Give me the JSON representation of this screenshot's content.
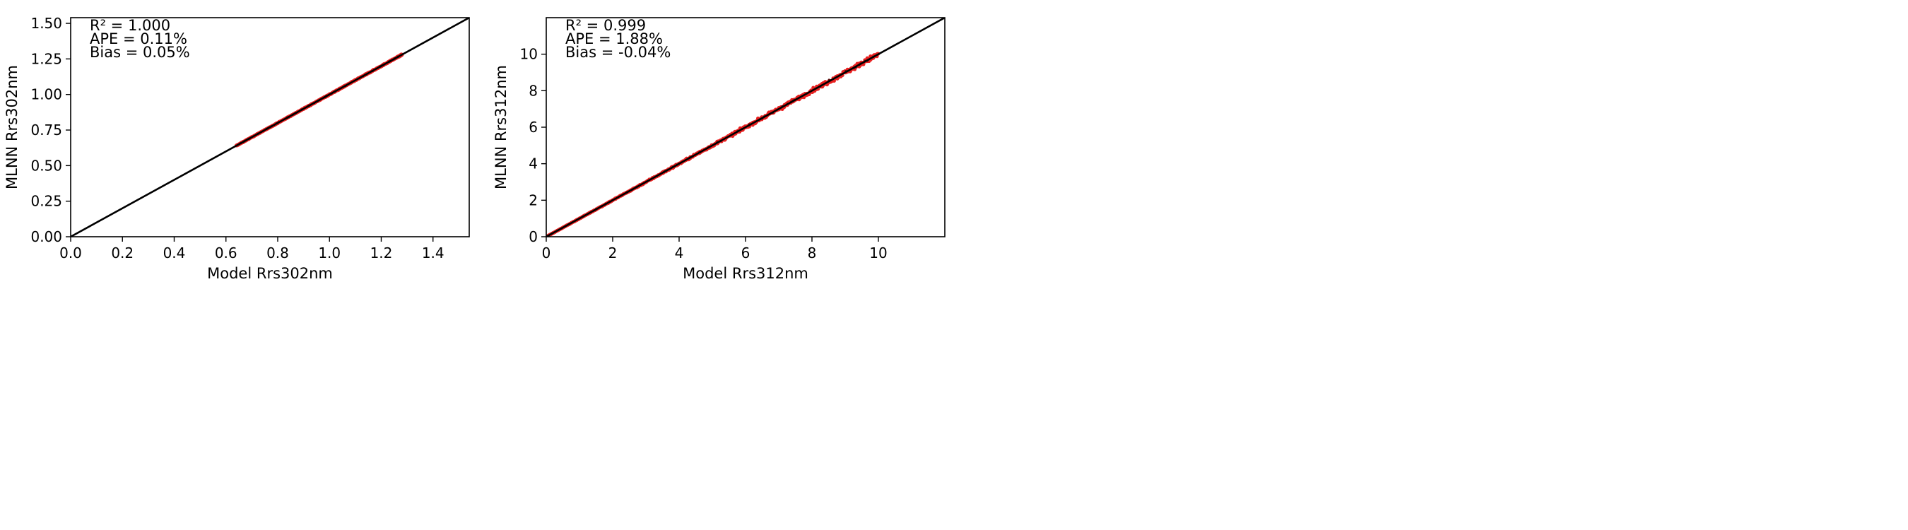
{
  "figure": {
    "background": "#ffffff"
  },
  "chart_data": [
    {
      "type": "scatter",
      "xlabel": "Model Rrs302nm",
      "ylabel": "MLNN Rrs302nm",
      "xlim": [
        0,
        1.54
      ],
      "ylim": [
        0,
        1.54
      ],
      "xticks": [
        0.0,
        0.2,
        0.4,
        0.6,
        0.8,
        1.0,
        1.2,
        1.4
      ],
      "xtick_labels": [
        "0.0",
        "0.2",
        "0.4",
        "0.6",
        "0.8",
        "1.0",
        "1.2",
        "1.4"
      ],
      "yticks": [
        0.0,
        0.25,
        0.5,
        0.75,
        1.0,
        1.25,
        1.5
      ],
      "ytick_labels": [
        "0.00",
        "0.25",
        "0.50",
        "0.75",
        "1.00",
        "1.25",
        "1.50"
      ],
      "reference_line": {
        "from": [
          0,
          0
        ],
        "to": [
          1.54,
          1.54
        ],
        "color": "#000000"
      },
      "series": [
        {
          "marker_color": "#e82020",
          "x_range": [
            0.64,
            1.28
          ],
          "relative_scatter": 0.004
        }
      ],
      "stats": {
        "r2": "R² = 1.000",
        "ape": "APE = 0.11%",
        "bias": "Bias = 0.05%"
      },
      "grid": false
    },
    {
      "type": "scatter",
      "xlabel": "Model Rrs312nm",
      "ylabel": "MLNN Rrs312nm",
      "xlim": [
        0,
        12
      ],
      "ylim": [
        0,
        12
      ],
      "xticks": [
        0,
        2,
        4,
        6,
        8,
        10
      ],
      "xtick_labels": [
        "0",
        "2",
        "4",
        "6",
        "8",
        "10"
      ],
      "yticks": [
        0,
        2,
        4,
        6,
        8,
        10
      ],
      "ytick_labels": [
        "0",
        "2",
        "4",
        "6",
        "8",
        "10"
      ],
      "reference_line": {
        "from": [
          0,
          0
        ],
        "to": [
          12,
          12
        ],
        "color": "#000000"
      },
      "series": [
        {
          "marker_color": "#e82020",
          "x_range": [
            0.05,
            10.0
          ],
          "relative_scatter": 0.018
        }
      ],
      "stats": {
        "r2": "R² = 0.999",
        "ape": "APE = 1.88%",
        "bias": "Bias = -0.04%"
      },
      "grid": false
    }
  ]
}
